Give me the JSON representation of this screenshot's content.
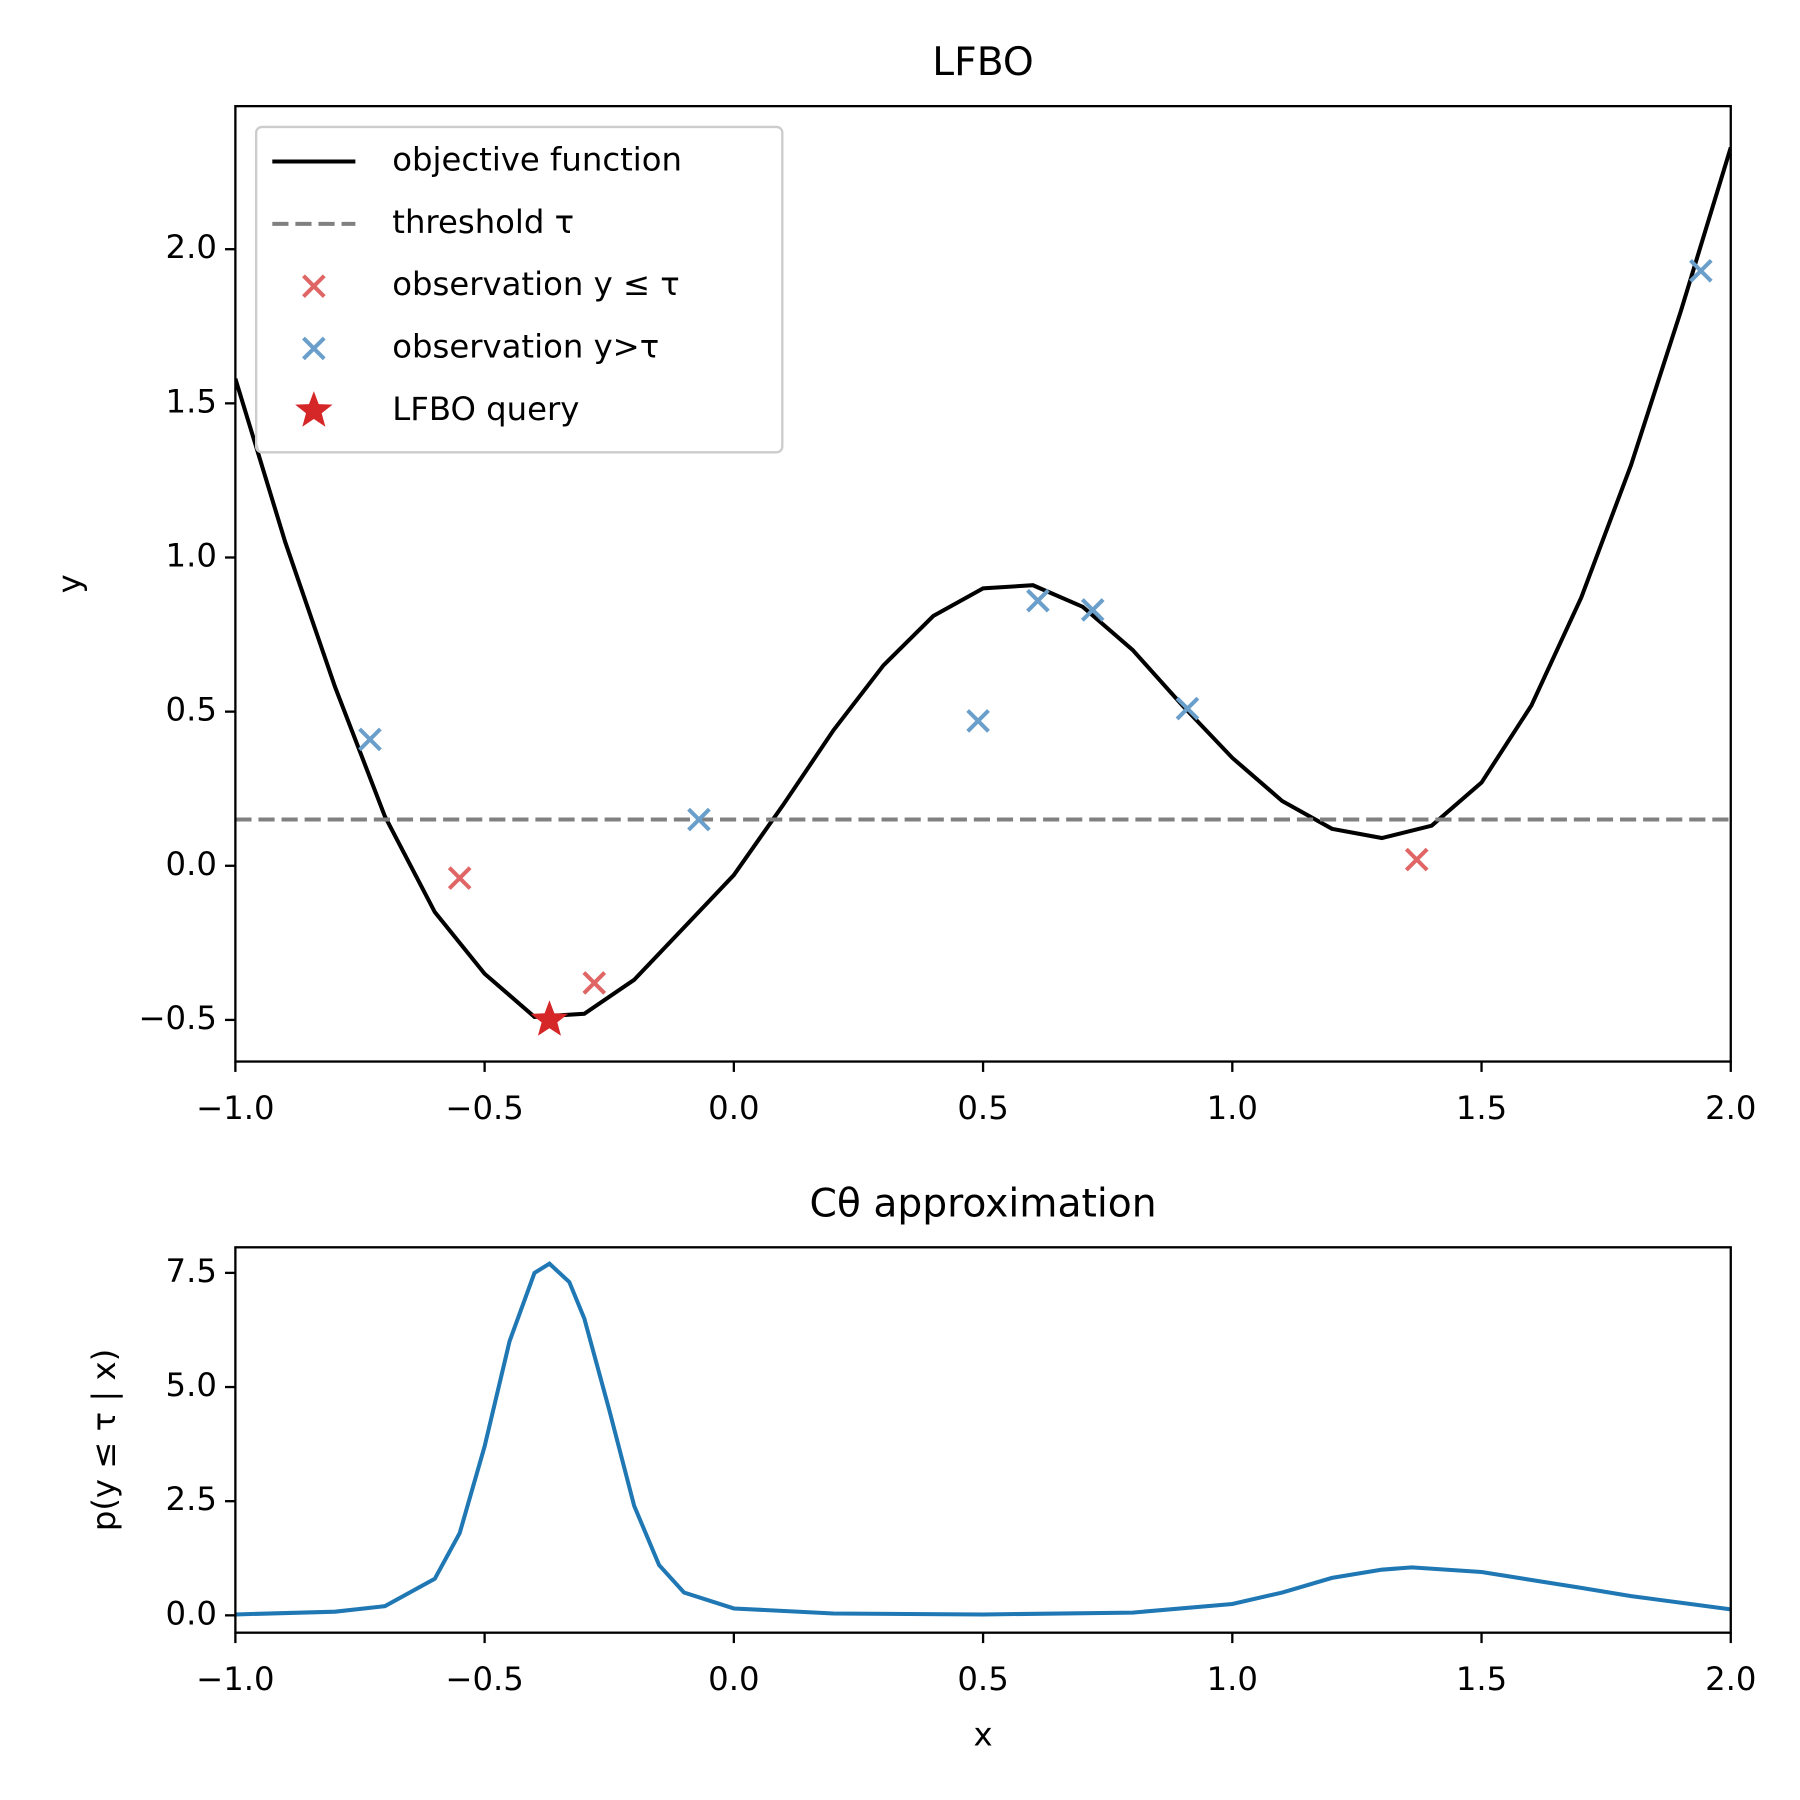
{
  "chart_data": [
    {
      "type": "combo",
      "title": "LFBO",
      "y_label": "y",
      "xlim": [
        -1.0,
        2.0
      ],
      "ylim": [
        -0.635,
        2.464
      ],
      "xticks": [
        {
          "value": -1.0,
          "label": "−1.0"
        },
        {
          "value": -0.5,
          "label": "−0.5"
        },
        {
          "value": 0.0,
          "label": "0.0"
        },
        0.5,
        {
          "value": 1.0,
          "label": "1.0"
        },
        1.5,
        {
          "value": 2.0,
          "label": "2.0"
        }
      ],
      "yticks": [
        {
          "value": -0.5,
          "label": "−0.5"
        },
        {
          "value": 0.0,
          "label": "0.0"
        },
        0.5,
        {
          "value": 1.0,
          "label": "1.0"
        },
        1.5,
        {
          "value": 2.0,
          "label": "2.0"
        }
      ],
      "legend": "upper left",
      "series": [
        {
          "name": "objective function",
          "type": "line",
          "color": "#000000",
          "x": [
            -1.0,
            -0.9,
            -0.8,
            -0.7,
            -0.6,
            -0.5,
            -0.4,
            -0.3,
            -0.2,
            -0.1,
            0.0,
            0.1,
            0.2,
            0.3,
            0.4,
            0.5,
            0.6,
            0.7,
            0.8,
            0.9,
            1.0,
            1.1,
            1.2,
            1.3,
            1.4,
            1.5,
            1.6,
            1.7,
            1.8,
            1.9,
            2.0
          ],
          "values": [
            1.58,
            1.05,
            0.58,
            0.16,
            -0.15,
            -0.35,
            -0.49,
            -0.48,
            -0.37,
            -0.2,
            -0.03,
            0.2,
            0.44,
            0.65,
            0.81,
            0.9,
            0.91,
            0.84,
            0.7,
            0.52,
            0.35,
            0.21,
            0.12,
            0.09,
            0.13,
            0.27,
            0.52,
            0.87,
            1.3,
            1.8,
            2.33
          ]
        },
        {
          "name": "threshold τ",
          "type": "hline",
          "dashed": true,
          "color": "#808080",
          "values": [
            0.15
          ]
        },
        {
          "name": "observation y ≤ τ",
          "type": "scatter",
          "marker": "x",
          "color": "#e06666",
          "x": [
            -0.55,
            -0.28,
            1.37
          ],
          "values": [
            -0.04,
            -0.38,
            0.02
          ]
        },
        {
          "name": "observation y>τ",
          "type": "scatter",
          "marker": "x",
          "color": "#6a9fcb",
          "x": [
            -0.73,
            -0.07,
            0.49,
            0.61,
            0.72,
            0.91,
            1.94
          ],
          "values": [
            0.41,
            0.15,
            0.47,
            0.86,
            0.83,
            0.51,
            1.93
          ]
        },
        {
          "name": "LFBO query",
          "type": "scatter",
          "marker": "star",
          "color": "#d62728",
          "x": [
            -0.37
          ],
          "values": [
            -0.5
          ]
        }
      ]
    },
    {
      "type": "line",
      "title": "Cθ approximation",
      "x_label": "x",
      "y_label": "p(y ≤ τ | x)",
      "xlim": [
        -1.0,
        2.0
      ],
      "ylim": [
        -0.38,
        8.06
      ],
      "xticks": [
        {
          "value": -1.0,
          "label": "−1.0"
        },
        {
          "value": -0.5,
          "label": "−0.5"
        },
        {
          "value": 0.0,
          "label": "0.0"
        },
        0.5,
        {
          "value": 1.0,
          "label": "1.0"
        },
        1.5,
        {
          "value": 2.0,
          "label": "2.0"
        }
      ],
      "yticks": [
        {
          "value": 0.0,
          "label": "0.0"
        },
        2.5,
        {
          "value": 5.0,
          "label": "5.0"
        },
        7.5
      ],
      "series": [
        {
          "color": "#1f77b4",
          "x": [
            -1.0,
            -0.8,
            -0.7,
            -0.6,
            -0.55,
            -0.5,
            -0.45,
            -0.4,
            -0.37,
            -0.33,
            -0.3,
            -0.25,
            -0.2,
            -0.15,
            -0.1,
            0.0,
            0.2,
            0.5,
            0.8,
            1.0,
            1.1,
            1.2,
            1.3,
            1.36,
            1.5,
            1.7,
            1.8,
            2.0
          ],
          "values": [
            0.02,
            0.08,
            0.2,
            0.8,
            1.8,
            3.7,
            6.0,
            7.5,
            7.7,
            7.3,
            6.5,
            4.5,
            2.4,
            1.1,
            0.5,
            0.15,
            0.04,
            0.02,
            0.06,
            0.25,
            0.5,
            0.82,
            1.0,
            1.05,
            0.95,
            0.6,
            0.42,
            0.13
          ]
        }
      ]
    }
  ]
}
